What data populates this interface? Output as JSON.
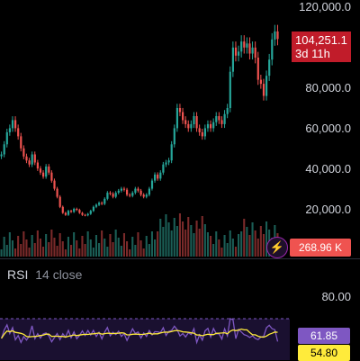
{
  "price_axis": {
    "ticks": [
      "120,000.0",
      "80,000.0",
      "60,000.0",
      "40,000.0",
      "20,000.0"
    ],
    "current_price": "104,251.1",
    "countdown": "3d 11h",
    "price_tag_color": "#c11c2a"
  },
  "volume": {
    "label": "268.96 K",
    "tag_color": "#ef5350"
  },
  "lightning_icon": "lightning-icon",
  "rsi": {
    "name": "RSI",
    "params": "14 close",
    "level_label": "80.00",
    "value": "61.85",
    "ma_value": "54.80",
    "value_color": "#7e57c2",
    "ma_color": "#ffeb3b"
  },
  "colors": {
    "up": "#26a69a",
    "down": "#ef5350",
    "background": "#000000"
  },
  "chart_data": {
    "type": "candlestick",
    "y_ticks": [
      20000,
      40000,
      60000,
      80000,
      120000
    ],
    "ylim": [
      0,
      122000
    ],
    "close_series": [
      47000,
      52000,
      58000,
      60000,
      64000,
      60000,
      56000,
      50000,
      46000,
      44000,
      42000,
      47000,
      43000,
      40000,
      38000,
      36000,
      41000,
      38000,
      34000,
      30000,
      26000,
      21000,
      18000,
      17000,
      19000,
      18500,
      20000,
      19500,
      18000,
      17000,
      16800,
      17500,
      19000,
      21000,
      22000,
      23000,
      22500,
      25000,
      28000,
      27500,
      26000,
      28000,
      29000,
      30000,
      29500,
      27000,
      26500,
      28000,
      30000,
      29000,
      27000,
      26000,
      27000,
      30000,
      34000,
      37000,
      35000,
      38000,
      42000,
      43000,
      44000,
      52000,
      60000,
      70000,
      68000,
      64000,
      62000,
      60000,
      62000,
      66000,
      60000,
      58000,
      56000,
      60000,
      62000,
      60000,
      63000,
      66000,
      64000,
      62000,
      67000,
      70000,
      88000,
      100000,
      96000,
      98000,
      103000,
      100000,
      102000,
      97000,
      100000,
      95000,
      84000,
      82000,
      76000,
      86000,
      94000,
      104000,
      108000,
      104251
    ]
  }
}
